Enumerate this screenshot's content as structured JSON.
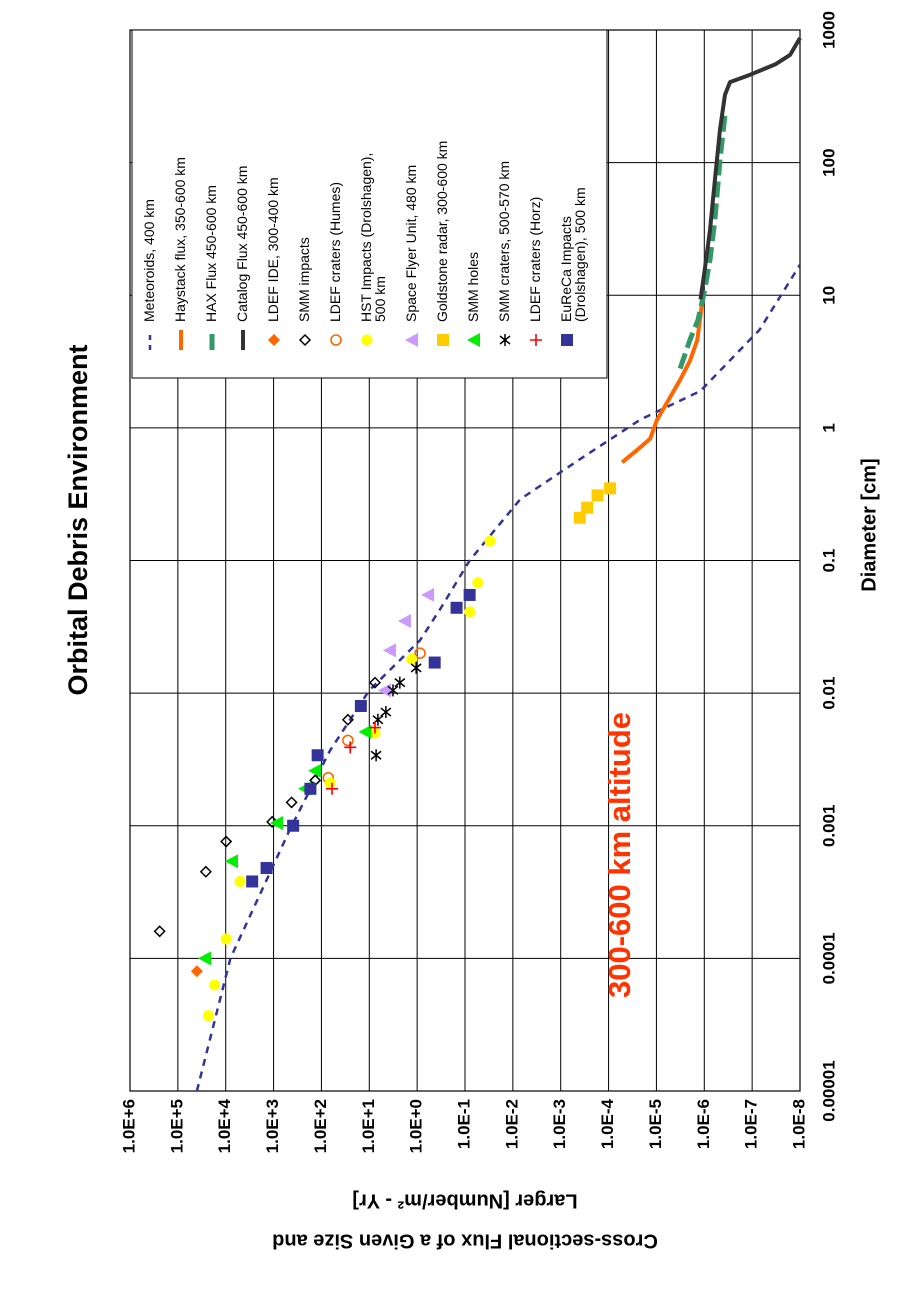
{
  "chart_data": {
    "type": "line",
    "title": "Orbital Debris Environment",
    "annotation": "300-600 km altitude",
    "x_label": "Diameter [cm]",
    "y_label": [
      "Cross-sectional Flux of a Given Size and",
      "Larger [Number/m² - Yr]"
    ],
    "xscale": "log",
    "yscale": "log",
    "grid": true,
    "legend": "right",
    "xlim": [
      1e-05,
      1000
    ],
    "xticks": [
      1e-05,
      0.0001,
      0.001,
      0.01,
      0.1,
      1,
      10,
      100,
      1000
    ],
    "ylim": [
      1e-08,
      1000000
    ],
    "yticks": [
      {
        "value": 1e-08,
        "label": "1.0E-8"
      },
      {
        "value": 1e-07,
        "label": "1.0E-7"
      },
      {
        "value": 1e-06,
        "label": "1.0E-6"
      },
      {
        "value": 1e-05,
        "label": "1.0E-5"
      },
      {
        "value": 0.0001,
        "label": "1.0E-4"
      },
      {
        "value": 0.001,
        "label": "1.0E-3"
      },
      {
        "value": 0.01,
        "label": "1.0E-2"
      },
      {
        "value": 0.1,
        "label": "1.0E-1"
      },
      {
        "value": 1,
        "label": "1.0E+0"
      },
      {
        "value": 10,
        "label": "1.0E+1"
      },
      {
        "value": 100,
        "label": "1.0E+2"
      },
      {
        "value": 1000,
        "label": "1.0E+3"
      },
      {
        "value": 10000,
        "label": "1.0E+4"
      },
      {
        "value": 100000,
        "label": "1.0E+5"
      },
      {
        "value": 1000000,
        "label": "1.0E+6"
      }
    ],
    "series": [
      {
        "name": "Meteoroids, 400 km",
        "color": "#333399",
        "mark": "line",
        "dash": "short",
        "x": [
          1e-05,
          0.0001,
          0.00093,
          0.0037,
          0.0105,
          0.025,
          0.043,
          0.1,
          0.29,
          0.58,
          1.15,
          1.9,
          5.5,
          17
        ],
        "values": [
          40000,
          8000,
          460,
          66,
          10,
          0.87,
          0.33,
          0.08,
          0.007,
          0.0004,
          2.2e-05,
          1.2e-06,
          7e-08,
          1e-08
        ]
      },
      {
        "name": "Haystack flux, 350-600 km",
        "color": "#ff6600",
        "mark": "line",
        "dash": "none",
        "x": [
          0.55,
          0.71,
          0.83,
          1.14,
          1.6,
          2.3,
          3.2,
          4.6,
          7,
          9.3
        ],
        "values": [
          5.2e-05,
          2.2e-05,
          1.35e-05,
          9.8e-06,
          5.7e-06,
          3.2e-06,
          2e-06,
          1.4e-06,
          1.2e-06,
          1.1e-06
        ]
      },
      {
        "name": "HAX Flux 450-600 km",
        "color": "#339966",
        "mark": "line",
        "dash": "long",
        "x": [
          2.8,
          4.6,
          6.5,
          11,
          18.5,
          37,
          105,
          230
        ],
        "values": [
          3.2e-06,
          2e-06,
          1.35e-06,
          9.8e-07,
          7.6e-07,
          6e-07,
          4.7e-07,
          3.7e-07
        ]
      },
      {
        "name": "Catalog Flux 450-600 km",
        "color": "#333333",
        "mark": "line",
        "dash": "none",
        "x": [
          9.3,
          15.5,
          31,
          74,
          178,
          325,
          405,
          460,
          550,
          650,
          870
        ],
        "values": [
          1.2e-06,
          9.8e-07,
          7.6e-07,
          6e-07,
          4.7e-07,
          3.7e-07,
          2.9e-07,
          1.1e-07,
          3.3e-08,
          1.6e-08,
          1e-08
        ]
      },
      {
        "name": "LDEF IDE, 300-400 km",
        "color": "#ff6600",
        "mark": "diamond",
        "x": [
          8e-05
        ],
        "values": [
          40000
        ]
      },
      {
        "name": "SMM impacts",
        "color": "#000000",
        "mark": "diamond-open",
        "x": [
          0.00016,
          0.00045,
          0.00076,
          0.00107,
          0.0015,
          0.0022,
          0.0063,
          0.012
        ],
        "values": [
          240000,
          26000,
          9800,
          1070,
          420,
          135,
          28,
          7.6
        ]
      },
      {
        "name": "LDEF craters (Humes)",
        "color": "#ff6600",
        "mark": "circle-open",
        "x": [
          0.0023,
          0.0044,
          0.02
        ],
        "values": [
          72,
          28,
          0.87
        ]
      },
      {
        "name": "HST Impacts (Drolshagen), 500 km",
        "color": "#ffff00",
        "mark": "circle",
        "x": [
          3.7e-05,
          6.3e-05,
          0.00014,
          0.00038,
          0.0021,
          0.005,
          0.018,
          0.041,
          0.068,
          0.14
        ],
        "values": [
          23000,
          17000,
          9800,
          5000,
          66,
          7.6,
          1.3,
          0.079,
          0.054,
          0.03
        ]
      },
      {
        "name": "Space Flyer Unit, 480 km",
        "color": "#cc99ff",
        "mark": "triangle",
        "x": [
          0.0105,
          0.021,
          0.035,
          0.055
        ],
        "values": [
          4.7,
          3.7,
          1.8,
          0.59
        ]
      },
      {
        "name": "Goldstone radar, 300-600 km",
        "color": "#ffcc00",
        "mark": "square",
        "x": [
          0.21,
          0.25,
          0.31,
          0.35
        ],
        "values": [
          0.0004,
          0.00028,
          0.00017,
          9.3e-05
        ]
      },
      {
        "name": "SMM holes",
        "color": "#00ee00",
        "mark": "triangle",
        "x": [
          0.0001,
          0.00054,
          0.00105,
          0.0019,
          0.0026,
          0.0051
        ],
        "values": [
          27000,
          7400,
          850,
          220,
          135,
          12
        ]
      },
      {
        "name": "SMM craters, 500-570 km",
        "color": "#000000",
        "mark": "asterisk",
        "x": [
          0.0034,
          0.0063,
          0.0072,
          0.0105,
          0.012,
          0.0155
        ],
        "values": [
          7.2,
          6.6,
          4.5,
          3.2,
          2.3,
          1.05
        ]
      },
      {
        "name": "LDEF craters (Horz)",
        "color": "#ff0000",
        "mark": "plus",
        "x": [
          0.0019,
          0.0039,
          0.0055
        ],
        "values": [
          60,
          25,
          7.6
        ]
      },
      {
        "name": "EuReCa Impacts (Drolshagen), 500 km",
        "color": "#333399",
        "mark": "square",
        "x": [
          0.00038,
          0.00048,
          0.001,
          0.0019,
          0.0034,
          0.008,
          0.017,
          0.044,
          0.055
        ],
        "values": [
          2800,
          1400,
          390,
          170,
          120,
          15,
          0.43,
          0.15,
          0.08
        ]
      }
    ]
  }
}
